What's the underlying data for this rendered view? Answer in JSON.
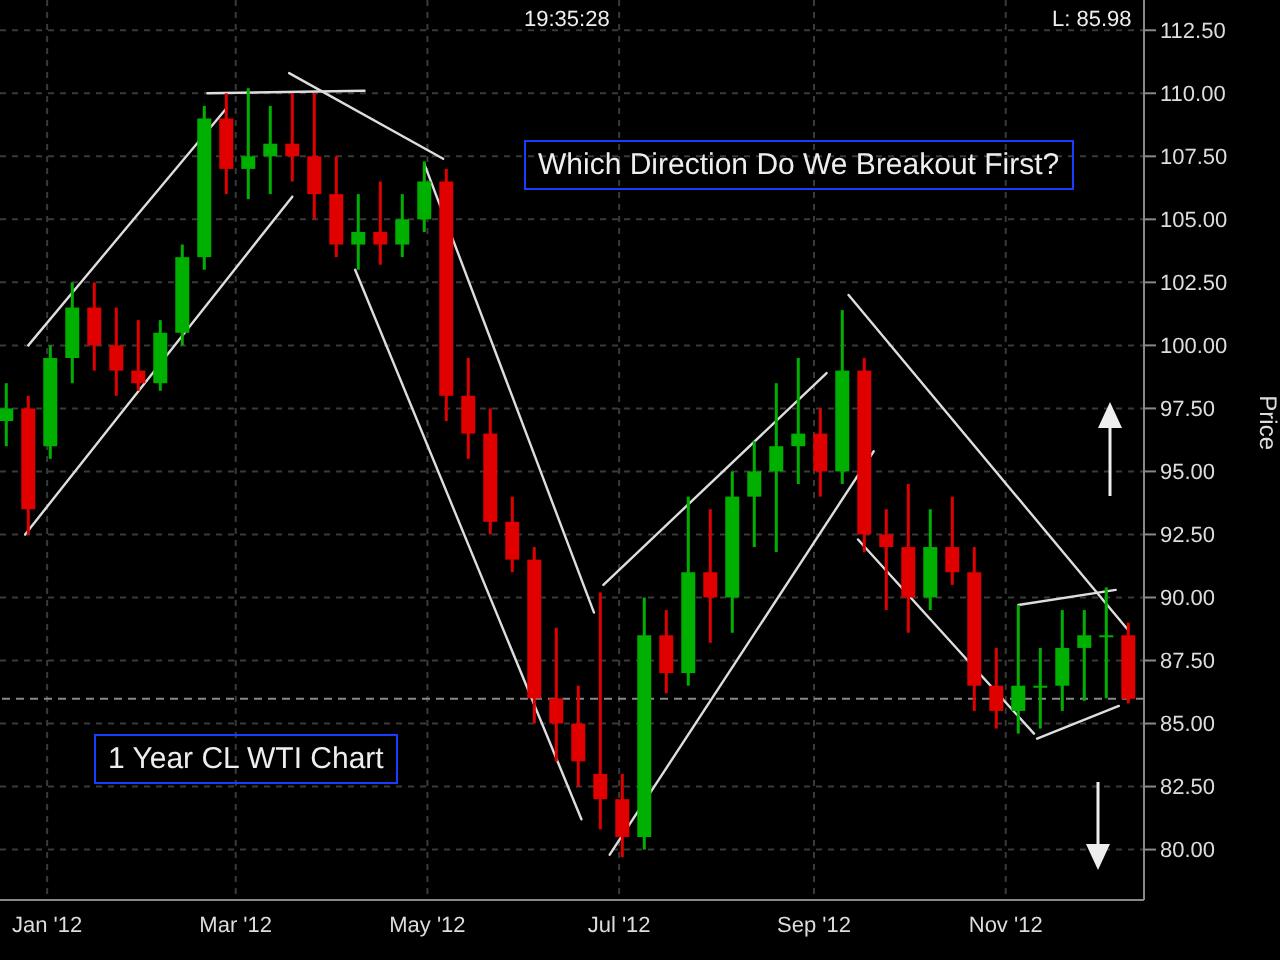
{
  "chart_data": {
    "type": "candlestick",
    "ylabel": "Price",
    "annotations": [
      "Which Direction Do We Breakout First?",
      "1 Year CL WTI Chart",
      "19:35:28",
      "L: 85.98"
    ],
    "x": [
      "2011-12-19",
      "2011-12-26",
      "2012-01-02",
      "2012-01-09",
      "2012-01-16",
      "2012-01-23",
      "2012-01-30",
      "2012-02-06",
      "2012-02-13",
      "2012-02-20",
      "2012-02-27",
      "2012-03-05",
      "2012-03-12",
      "2012-03-19",
      "2012-03-26",
      "2012-04-02",
      "2012-04-09",
      "2012-04-16",
      "2012-04-23",
      "2012-04-30",
      "2012-05-07",
      "2012-05-14",
      "2012-05-21",
      "2012-05-28",
      "2012-06-04",
      "2012-06-11",
      "2012-06-18",
      "2012-06-25",
      "2012-07-02",
      "2012-07-09",
      "2012-07-16",
      "2012-07-23",
      "2012-07-30",
      "2012-08-06",
      "2012-08-13",
      "2012-08-20",
      "2012-08-27",
      "2012-09-03",
      "2012-09-10",
      "2012-09-17",
      "2012-09-24",
      "2012-10-01",
      "2012-10-08",
      "2012-10-15",
      "2012-10-22",
      "2012-10-29",
      "2012-11-05",
      "2012-11-12",
      "2012-11-19",
      "2012-11-26",
      "2012-12-03",
      "2012-12-10"
    ],
    "ohlc": [
      [
        97,
        98.5,
        96,
        97.5
      ],
      [
        97.5,
        98,
        92.5,
        93.5
      ],
      [
        96,
        100,
        95.5,
        99.5
      ],
      [
        99.5,
        102.5,
        98.5,
        101.5
      ],
      [
        101.5,
        102.5,
        99,
        100
      ],
      [
        100,
        101.5,
        98,
        99
      ],
      [
        99,
        101,
        98.2,
        98.5
      ],
      [
        98.5,
        101,
        98.2,
        100.5
      ],
      [
        100.5,
        104,
        100,
        103.5
      ],
      [
        103.5,
        109.5,
        103,
        109
      ],
      [
        109,
        110,
        106,
        107
      ],
      [
        107,
        110.2,
        105.8,
        107.5
      ],
      [
        107.5,
        109.5,
        106,
        108
      ],
      [
        108,
        110,
        106.5,
        107.5
      ],
      [
        107.5,
        110,
        105,
        106
      ],
      [
        106,
        107.5,
        103.5,
        104
      ],
      [
        104,
        106,
        103,
        104.5
      ],
      [
        104.5,
        106.5,
        103.2,
        104
      ],
      [
        104,
        106,
        103.5,
        105
      ],
      [
        105,
        107.3,
        104.5,
        106.5
      ],
      [
        106.5,
        107,
        97,
        98
      ],
      [
        98,
        99.5,
        95.5,
        96.5
      ],
      [
        96.5,
        97.5,
        92.5,
        93
      ],
      [
        93,
        94,
        91,
        91.5
      ],
      [
        91.5,
        92,
        85,
        86
      ],
      [
        86,
        88.8,
        83.5,
        85
      ],
      [
        85,
        86.5,
        82.5,
        83.5
      ],
      [
        83,
        90.2,
        80.8,
        82
      ],
      [
        82,
        83,
        79.7,
        80.5
      ],
      [
        80.5,
        90,
        80,
        88.5
      ],
      [
        88.5,
        89.5,
        86.2,
        87
      ],
      [
        87,
        94,
        86.5,
        91
      ],
      [
        91,
        93.5,
        88.2,
        90
      ],
      [
        90,
        95,
        88.6,
        94
      ],
      [
        94,
        96.2,
        92,
        95
      ],
      [
        95,
        98.5,
        91.8,
        96
      ],
      [
        96,
        99.5,
        94.5,
        96.5
      ],
      [
        96.5,
        97.5,
        94,
        95
      ],
      [
        95,
        101.4,
        94.5,
        99
      ],
      [
        99,
        99.5,
        91.8,
        92.5
      ],
      [
        92.5,
        93.5,
        89.5,
        92
      ],
      [
        92,
        94.5,
        88.6,
        90
      ],
      [
        90,
        93.5,
        89.5,
        92
      ],
      [
        92,
        94,
        90.5,
        91
      ],
      [
        91,
        92,
        85.5,
        86.5
      ],
      [
        86.5,
        88,
        84.8,
        85.5
      ],
      [
        85.5,
        89.7,
        84.6,
        86.5
      ],
      [
        86.5,
        88,
        84.8,
        86.5
      ],
      [
        86.5,
        89.5,
        85.5,
        88
      ],
      [
        88,
        89.5,
        85.9,
        88.5
      ],
      [
        88.5,
        90.4,
        86,
        88.5
      ],
      [
        88.5,
        89,
        85.8,
        85.98
      ]
    ],
    "colors": [
      "#00b000",
      "#e00000",
      "#00b000",
      "#00b000",
      "#e00000",
      "#e00000",
      "#e00000",
      "#00b000",
      "#00b000",
      "#00b000",
      "#e00000",
      "#00b000",
      "#00b000",
      "#e00000",
      "#e00000",
      "#e00000",
      "#00b000",
      "#e00000",
      "#00b000",
      "#00b000",
      "#e00000",
      "#e00000",
      "#e00000",
      "#e00000",
      "#e00000",
      "#e00000",
      "#e00000",
      "#e00000",
      "#e00000",
      "#00b000",
      "#e00000",
      "#00b000",
      "#e00000",
      "#00b000",
      "#00b000",
      "#00b000",
      "#00b000",
      "#e00000",
      "#00b000",
      "#e00000",
      "#e00000",
      "#e00000",
      "#00b000",
      "#e00000",
      "#e00000",
      "#e00000",
      "#00b000",
      "#00b000",
      "#00b000",
      "#00b000",
      "#00b000",
      "#e00000"
    ],
    "series": [
      {
        "type": "line",
        "color": "#dddddd",
        "x": [
          "2011-12-25",
          "2012-03-19"
        ],
        "values": [
          92.5,
          105.9
        ]
      },
      {
        "type": "line",
        "color": "#dddddd",
        "x": [
          "2011-12-26",
          "2012-02-27"
        ],
        "values": [
          100,
          109.4
        ]
      },
      {
        "type": "line",
        "color": "#dddddd",
        "x": [
          "2012-02-21",
          "2012-04-11"
        ],
        "values": [
          110,
          110.1
        ]
      },
      {
        "type": "line",
        "color": "#dddddd",
        "x": [
          "2012-03-18",
          "2012-05-06"
        ],
        "values": [
          110.8,
          107.4
        ]
      },
      {
        "type": "line",
        "color": "#dddddd",
        "x": [
          "2012-04-30",
          "2012-06-23"
        ],
        "values": [
          107.2,
          89.4
        ]
      },
      {
        "type": "line",
        "color": "#dddddd",
        "x": [
          "2012-04-08",
          "2012-06-19"
        ],
        "values": [
          103,
          81.2
        ]
      },
      {
        "type": "line",
        "color": "#dddddd",
        "x": [
          "2012-06-26",
          "2012-09-05"
        ],
        "values": [
          90.5,
          98.9
        ]
      },
      {
        "type": "line",
        "color": "#dddddd",
        "x": [
          "2012-06-28",
          "2012-09-20"
        ],
        "values": [
          79.8,
          95.8
        ]
      },
      {
        "type": "line",
        "color": "#dddddd",
        "x": [
          "2012-09-12",
          "2012-12-10"
        ],
        "values": [
          102,
          88.7
        ]
      },
      {
        "type": "line",
        "color": "#dddddd",
        "x": [
          "2012-09-15",
          "2012-11-10"
        ],
        "values": [
          92.3,
          84.6
        ]
      },
      {
        "type": "line",
        "color": "#dddddd",
        "x": [
          "2012-11-05",
          "2012-12-06"
        ],
        "values": [
          89.7,
          90.3
        ]
      },
      {
        "type": "line",
        "color": "#dddddd",
        "x": [
          "2012-11-11",
          "2012-12-07"
        ],
        "values": [
          84.4,
          85.7
        ]
      }
    ],
    "ref_lines": [
      {
        "axis": "y",
        "value": 85.98,
        "color": "#888888",
        "line_style": "dashed"
      }
    ],
    "xlim": [
      "2011-12-17",
      "2012-12-15"
    ],
    "xticks": [
      {
        "value": "2012-01-01",
        "label": "Jan '12"
      },
      {
        "value": "2012-03-01",
        "label": "Mar '12"
      },
      {
        "value": "2012-05-01",
        "label": "May '12"
      },
      {
        "value": "2012-07-01",
        "label": "Jul '12"
      },
      {
        "value": "2012-09-01",
        "label": "Sep '12"
      },
      {
        "value": "2012-11-01",
        "label": "Nov '12"
      }
    ],
    "ylim": [
      78,
      113.7
    ],
    "yticks": [
      {
        "value": 80,
        "label": "80.00"
      },
      {
        "value": 82.5,
        "label": "82.50"
      },
      {
        "value": 85,
        "label": "85.00"
      },
      {
        "value": 87.5,
        "label": "87.50"
      },
      {
        "value": 90,
        "label": "90.00"
      },
      {
        "value": 92.5,
        "label": "92.50"
      },
      {
        "value": 95,
        "label": "95.00"
      },
      {
        "value": 97.5,
        "label": "97.50"
      },
      {
        "value": 100,
        "label": "100.00"
      },
      {
        "value": 102.5,
        "label": "102.50"
      },
      {
        "value": 105,
        "label": "105.00"
      },
      {
        "value": 107.5,
        "label": "107.50"
      },
      {
        "value": 110,
        "label": "110.00"
      },
      {
        "value": 112.5,
        "label": "112.50"
      }
    ],
    "grid": true
  }
}
